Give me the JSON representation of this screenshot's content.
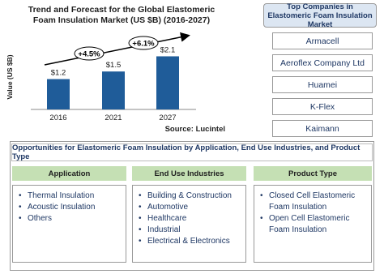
{
  "chart_data": {
    "type": "bar",
    "title": "Trend and Forecast for the Global Elastomeric Foam Insulation Market (US $B) (2016-2027)",
    "y_label": "Value (US $B)",
    "categories": [
      "2016",
      "2021",
      "2027"
    ],
    "values": [
      1.2,
      1.5,
      2.1
    ],
    "value_labels": [
      "$1.2",
      "$1.5",
      "$2.1"
    ],
    "color": "#1f5c99",
    "ylim": [
      0,
      2.5
    ],
    "annotations": [
      "+4.5%",
      "+6.1%"
    ],
    "source": "Source: Lucintel"
  },
  "companies": {
    "title": "Top Companies in Elastomeric Foam Insulation Market",
    "items": [
      "Armacell",
      "Aeroflex Company Ltd",
      "Huamei",
      "K-Flex",
      "Kaimann"
    ]
  },
  "opportunities": {
    "title": "Opportunities for Elastomeric Foam Insulation by Application, End Use Industries, and Product Type",
    "columns": [
      {
        "header": "Application",
        "items": [
          "Thermal Insulation",
          "Acoustic Insulation",
          "Others"
        ]
      },
      {
        "header": "End Use Industries",
        "items": [
          "Building & Construction",
          "Automotive",
          "Healthcare",
          "Industrial",
          "Electrical & Electronics"
        ]
      },
      {
        "header": "Product Type",
        "items": [
          "Closed Cell Elastomeric Foam Insulation",
          "Open Cell Elastomeric Foam Insulation"
        ]
      }
    ]
  }
}
